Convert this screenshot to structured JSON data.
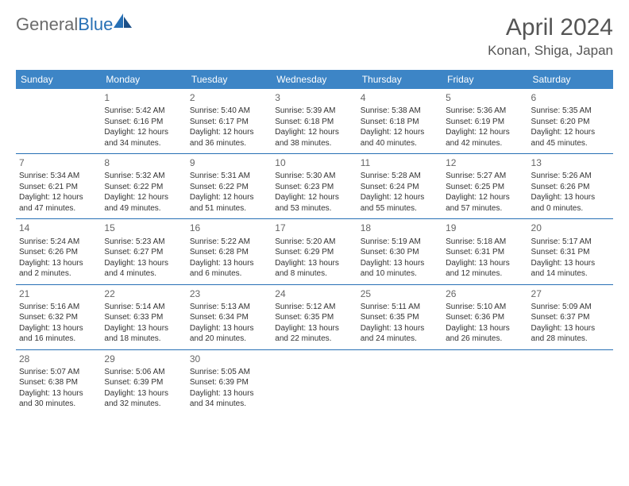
{
  "brand": {
    "part1": "General",
    "part2": "Blue"
  },
  "title": "April 2024",
  "location": "Konan, Shiga, Japan",
  "colors": {
    "header_bg": "#3d85c6",
    "header_text": "#ffffff",
    "rule": "#2770b5",
    "body_text": "#333333",
    "muted": "#666666",
    "logo_gray": "#6b6b6b",
    "logo_blue": "#2770b5",
    "background": "#ffffff"
  },
  "typography": {
    "title_fontsize": 30,
    "location_fontsize": 17,
    "weekday_fontsize": 12,
    "daynum_fontsize": 12,
    "body_fontsize": 10
  },
  "layout": {
    "columns": 7,
    "rows": 5,
    "first_weekday_index": 1
  },
  "weekdays": [
    "Sunday",
    "Monday",
    "Tuesday",
    "Wednesday",
    "Thursday",
    "Friday",
    "Saturday"
  ],
  "days": [
    {
      "n": 1,
      "sunrise": "5:42 AM",
      "sunset": "6:16 PM",
      "daylight": "12 hours and 34 minutes."
    },
    {
      "n": 2,
      "sunrise": "5:40 AM",
      "sunset": "6:17 PM",
      "daylight": "12 hours and 36 minutes."
    },
    {
      "n": 3,
      "sunrise": "5:39 AM",
      "sunset": "6:18 PM",
      "daylight": "12 hours and 38 minutes."
    },
    {
      "n": 4,
      "sunrise": "5:38 AM",
      "sunset": "6:18 PM",
      "daylight": "12 hours and 40 minutes."
    },
    {
      "n": 5,
      "sunrise": "5:36 AM",
      "sunset": "6:19 PM",
      "daylight": "12 hours and 42 minutes."
    },
    {
      "n": 6,
      "sunrise": "5:35 AM",
      "sunset": "6:20 PM",
      "daylight": "12 hours and 45 minutes."
    },
    {
      "n": 7,
      "sunrise": "5:34 AM",
      "sunset": "6:21 PM",
      "daylight": "12 hours and 47 minutes."
    },
    {
      "n": 8,
      "sunrise": "5:32 AM",
      "sunset": "6:22 PM",
      "daylight": "12 hours and 49 minutes."
    },
    {
      "n": 9,
      "sunrise": "5:31 AM",
      "sunset": "6:22 PM",
      "daylight": "12 hours and 51 minutes."
    },
    {
      "n": 10,
      "sunrise": "5:30 AM",
      "sunset": "6:23 PM",
      "daylight": "12 hours and 53 minutes."
    },
    {
      "n": 11,
      "sunrise": "5:28 AM",
      "sunset": "6:24 PM",
      "daylight": "12 hours and 55 minutes."
    },
    {
      "n": 12,
      "sunrise": "5:27 AM",
      "sunset": "6:25 PM",
      "daylight": "12 hours and 57 minutes."
    },
    {
      "n": 13,
      "sunrise": "5:26 AM",
      "sunset": "6:26 PM",
      "daylight": "13 hours and 0 minutes."
    },
    {
      "n": 14,
      "sunrise": "5:24 AM",
      "sunset": "6:26 PM",
      "daylight": "13 hours and 2 minutes."
    },
    {
      "n": 15,
      "sunrise": "5:23 AM",
      "sunset": "6:27 PM",
      "daylight": "13 hours and 4 minutes."
    },
    {
      "n": 16,
      "sunrise": "5:22 AM",
      "sunset": "6:28 PM",
      "daylight": "13 hours and 6 minutes."
    },
    {
      "n": 17,
      "sunrise": "5:20 AM",
      "sunset": "6:29 PM",
      "daylight": "13 hours and 8 minutes."
    },
    {
      "n": 18,
      "sunrise": "5:19 AM",
      "sunset": "6:30 PM",
      "daylight": "13 hours and 10 minutes."
    },
    {
      "n": 19,
      "sunrise": "5:18 AM",
      "sunset": "6:31 PM",
      "daylight": "13 hours and 12 minutes."
    },
    {
      "n": 20,
      "sunrise": "5:17 AM",
      "sunset": "6:31 PM",
      "daylight": "13 hours and 14 minutes."
    },
    {
      "n": 21,
      "sunrise": "5:16 AM",
      "sunset": "6:32 PM",
      "daylight": "13 hours and 16 minutes."
    },
    {
      "n": 22,
      "sunrise": "5:14 AM",
      "sunset": "6:33 PM",
      "daylight": "13 hours and 18 minutes."
    },
    {
      "n": 23,
      "sunrise": "5:13 AM",
      "sunset": "6:34 PM",
      "daylight": "13 hours and 20 minutes."
    },
    {
      "n": 24,
      "sunrise": "5:12 AM",
      "sunset": "6:35 PM",
      "daylight": "13 hours and 22 minutes."
    },
    {
      "n": 25,
      "sunrise": "5:11 AM",
      "sunset": "6:35 PM",
      "daylight": "13 hours and 24 minutes."
    },
    {
      "n": 26,
      "sunrise": "5:10 AM",
      "sunset": "6:36 PM",
      "daylight": "13 hours and 26 minutes."
    },
    {
      "n": 27,
      "sunrise": "5:09 AM",
      "sunset": "6:37 PM",
      "daylight": "13 hours and 28 minutes."
    },
    {
      "n": 28,
      "sunrise": "5:07 AM",
      "sunset": "6:38 PM",
      "daylight": "13 hours and 30 minutes."
    },
    {
      "n": 29,
      "sunrise": "5:06 AM",
      "sunset": "6:39 PM",
      "daylight": "13 hours and 32 minutes."
    },
    {
      "n": 30,
      "sunrise": "5:05 AM",
      "sunset": "6:39 PM",
      "daylight": "13 hours and 34 minutes."
    }
  ],
  "labels": {
    "sunrise": "Sunrise:",
    "sunset": "Sunset:",
    "daylight": "Daylight:"
  }
}
